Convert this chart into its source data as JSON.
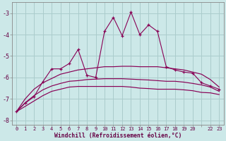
{
  "xlabel": "Windchill (Refroidissement éolien,°C)",
  "bg_color": "#cce8e8",
  "grid_color": "#aacccc",
  "line_color": "#880055",
  "x_hours": [
    0,
    1,
    2,
    3,
    4,
    5,
    6,
    7,
    8,
    9,
    10,
    11,
    12,
    13,
    14,
    15,
    16,
    17,
    18,
    19,
    20,
    21,
    22,
    23
  ],
  "y_actual": [
    -7.6,
    -7.2,
    -6.9,
    -6.2,
    -5.6,
    -5.6,
    -5.35,
    -4.7,
    -5.9,
    -6.0,
    -3.85,
    -3.2,
    -4.05,
    -2.95,
    -4.0,
    -3.55,
    -3.85,
    -5.5,
    -5.65,
    -5.75,
    -5.8,
    -6.25,
    -6.4,
    -6.55
  ],
  "y_max": [
    -7.6,
    -7.0,
    -6.55,
    -6.25,
    -6.05,
    -5.85,
    -5.75,
    -5.65,
    -5.6,
    -5.55,
    -5.5,
    -5.5,
    -5.48,
    -5.48,
    -5.5,
    -5.5,
    -5.5,
    -5.55,
    -5.6,
    -5.65,
    -5.75,
    -5.85,
    -6.1,
    -6.45
  ],
  "y_min": [
    -7.6,
    -7.35,
    -7.1,
    -6.85,
    -6.65,
    -6.55,
    -6.45,
    -6.42,
    -6.42,
    -6.42,
    -6.42,
    -6.42,
    -6.42,
    -6.45,
    -6.5,
    -6.52,
    -6.55,
    -6.55,
    -6.55,
    -6.58,
    -6.62,
    -6.7,
    -6.72,
    -6.8
  ],
  "y_mean": [
    -7.6,
    -7.18,
    -6.85,
    -6.58,
    -6.4,
    -6.28,
    -6.18,
    -6.15,
    -6.1,
    -6.08,
    -6.06,
    -6.06,
    -6.06,
    -6.08,
    -6.1,
    -6.12,
    -6.15,
    -6.18,
    -6.18,
    -6.22,
    -6.28,
    -6.35,
    -6.45,
    -6.65
  ],
  "ylim": [
    -8.2,
    -2.5
  ],
  "yticks": [
    -8,
    -7,
    -6,
    -5,
    -4,
    -3
  ],
  "xlim": [
    -0.5,
    23.5
  ],
  "xtick_labels": [
    "0",
    "1",
    "2",
    "3",
    "4",
    "5",
    "6",
    "7",
    "8",
    "9",
    "10",
    "11",
    "12",
    "13",
    "14",
    "15",
    "16",
    "17",
    "18",
    "19",
    "20",
    "",
    "22",
    "23"
  ]
}
